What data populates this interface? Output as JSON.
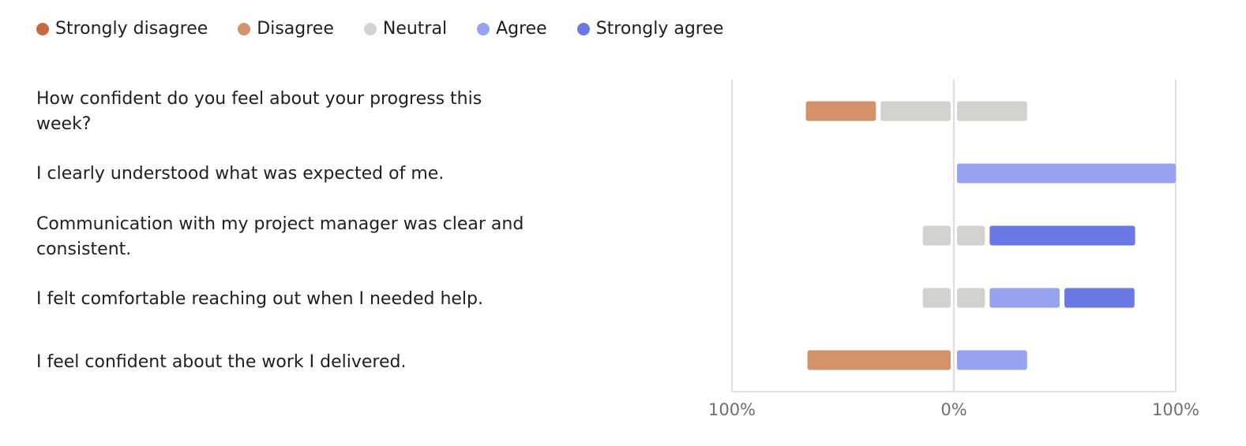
{
  "legend": [
    {
      "label": "Strongly disagree",
      "color": "#c66a3f"
    },
    {
      "label": "Disagree",
      "color": "#d4926a"
    },
    {
      "label": "Neutral",
      "color": "#d3d2cf"
    },
    {
      "label": "Agree",
      "color": "#98a3f0"
    },
    {
      "label": "Strongly agree",
      "color": "#6a79e6"
    }
  ],
  "questions": [
    "How confident do you feel about your progress this week?",
    "I clearly understood what was expected of me.",
    "Communication with my project manager was clear and consistent.",
    "I felt comfortable reaching out when I needed help.",
    "I feel confident about the work I delivered."
  ],
  "chart_data": {
    "type": "bar",
    "orientation": "horizontal",
    "stacking": "diverging",
    "categories": [
      "How confident do you feel about your progress this week?",
      "I clearly understood what was expected of me.",
      "Communication with my project manager was clear and consistent.",
      "I felt comfortable reaching out when I needed help.",
      "I feel confident about the work I delivered."
    ],
    "series": [
      {
        "name": "Strongly disagree",
        "color": "#c66a3f",
        "values": [
          0,
          0,
          0,
          0,
          0
        ]
      },
      {
        "name": "Disagree",
        "color": "#d4926a",
        "values": [
          33,
          0,
          0,
          0,
          66
        ]
      },
      {
        "name": "Neutral",
        "color": "#d3d2cf",
        "values": [
          66,
          0,
          28,
          28,
          0
        ]
      },
      {
        "name": "Agree",
        "color": "#98a3f0",
        "values": [
          0,
          100,
          0,
          33,
          33
        ]
      },
      {
        "name": "Strongly agree",
        "color": "#6a79e6",
        "values": [
          0,
          0,
          67,
          33,
          0
        ]
      }
    ],
    "xlim": [
      -100,
      100
    ],
    "tick_labels": [
      "100%",
      "0%",
      "100%"
    ]
  }
}
